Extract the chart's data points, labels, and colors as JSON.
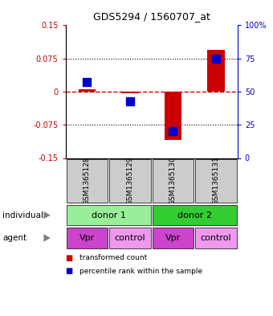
{
  "title": "GDS5294 / 1560707_at",
  "samples": [
    "GSM1365128",
    "GSM1365129",
    "GSM1365130",
    "GSM1365131"
  ],
  "transformed_counts": [
    0.005,
    -0.004,
    -0.11,
    0.095
  ],
  "percentile_ranks_pct": [
    57,
    43,
    20,
    75
  ],
  "ylim_left": [
    -0.15,
    0.15
  ],
  "ylim_right": [
    0,
    100
  ],
  "yticks_left": [
    -0.15,
    -0.075,
    0,
    0.075,
    0.15
  ],
  "yticks_right": [
    0,
    25,
    50,
    75,
    100
  ],
  "ytick_labels_left": [
    "-0.15",
    "-0.075",
    "0",
    "0.075",
    "0.15"
  ],
  "ytick_labels_right": [
    "0",
    "25",
    "50",
    "75",
    "100%"
  ],
  "hline_dotted": [
    -0.075,
    0.075
  ],
  "bar_color": "#cc0000",
  "dot_color": "#0000cc",
  "bar_width": 0.4,
  "dot_size": 55,
  "individuals": [
    {
      "label": "donor 1",
      "cols": [
        0,
        1
      ],
      "color": "#99ee99"
    },
    {
      "label": "donor 2",
      "cols": [
        2,
        3
      ],
      "color": "#33cc33"
    }
  ],
  "agents": [
    {
      "label": "Vpr",
      "col": 0,
      "color": "#cc44cc"
    },
    {
      "label": "control",
      "col": 1,
      "color": "#ee99ee"
    },
    {
      "label": "Vpr",
      "col": 2,
      "color": "#cc44cc"
    },
    {
      "label": "control",
      "col": 3,
      "color": "#ee99ee"
    }
  ],
  "legend_items": [
    {
      "label": "transformed count",
      "color": "#cc0000"
    },
    {
      "label": "percentile rank within the sample",
      "color": "#0000cc"
    }
  ],
  "background_color": "#ffffff",
  "sample_box_color": "#cccccc",
  "left_axis_color": "#cc0000",
  "right_axis_color": "#0000cc",
  "row_labels": [
    "individual",
    "agent"
  ]
}
